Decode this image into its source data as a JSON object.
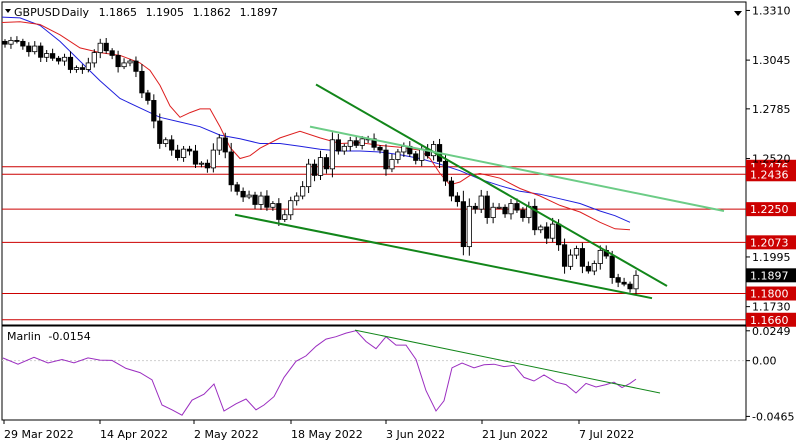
{
  "chart_data": {
    "type": "candlestick",
    "instrument": {
      "symbol": "GBPUSD",
      "timeframe": "Daily",
      "ohlc": [
        "1.1865",
        "1.1905",
        "1.1862",
        "1.1897"
      ]
    },
    "x_axis": {
      "tick_labels": [
        "29 Mar 2022",
        "14 Apr 2022",
        "2 May 2022",
        "18 May 2022",
        "3 Jun 2022",
        "21 Jun 2022",
        "7 Jul 2022"
      ]
    },
    "price_axis": {
      "ylim": [
        1.1632,
        1.3355
      ],
      "tick_labels": [
        1.331,
        1.3045,
        1.2785,
        1.252,
        1.1995,
        1.173
      ]
    },
    "current_price": {
      "label": "1.1897",
      "value": 1.1897
    },
    "levels": [
      {
        "value": 1.2476,
        "label": "1.2476",
        "color": "#cc0000"
      },
      {
        "value": 1.2436,
        "label": "1.2436",
        "color": "#cc0000"
      },
      {
        "value": 1.225,
        "label": "1.2250",
        "color": "#cc0000"
      },
      {
        "value": 1.2073,
        "label": "1.2073",
        "color": "#cc0000"
      },
      {
        "value": 1.18,
        "label": "1.1800",
        "color": "#cc0000"
      },
      {
        "value": 1.166,
        "label": "1.1660",
        "color": "#cc0000"
      }
    ],
    "candles": {
      "closes": [
        1.313,
        1.315,
        1.3145,
        1.312,
        1.309,
        1.312,
        1.306,
        1.308,
        1.3055,
        1.304,
        1.306,
        1.2995,
        1.3005,
        1.2995,
        1.303,
        1.3085,
        1.3135,
        1.3095,
        1.307,
        1.301,
        1.303,
        1.304,
        1.2985,
        1.287,
        1.283,
        1.272,
        1.26,
        1.262,
        1.2565,
        1.2525,
        1.257,
        1.256,
        1.249,
        1.2495,
        1.247,
        1.2565,
        1.263,
        1.2555,
        1.238,
        1.2345,
        1.2315,
        1.2325,
        1.2275,
        1.232,
        1.226,
        1.228,
        1.2195,
        1.222,
        1.2295,
        1.232,
        1.237,
        1.249,
        1.243,
        1.2525,
        1.2465,
        1.262,
        1.256,
        1.2585,
        1.2615,
        1.259,
        1.2625,
        1.2625,
        1.258,
        1.2565,
        1.2465,
        1.2515,
        1.2555,
        1.2585,
        1.2545,
        1.251,
        1.257,
        1.2535,
        1.2595,
        1.2505,
        1.24,
        1.232,
        1.229,
        1.205,
        1.2265,
        1.225,
        1.232,
        1.2205,
        1.226,
        1.226,
        1.2225,
        1.228,
        1.2245,
        1.2205,
        1.2265,
        1.214,
        1.2155,
        1.2095,
        1.217,
        1.206,
        1.1945,
        1.2005,
        1.204,
        1.1945,
        1.192,
        1.196,
        1.203,
        1.2,
        1.1885,
        1.186,
        1.185,
        1.1825,
        1.1897
      ],
      "bull_color": "#ffffff",
      "bear_color": "#000000",
      "wick_color": "#000000"
    },
    "moving_averages": [
      {
        "period": "slow",
        "color": "#1f1fdd",
        "points": [
          [
            0,
            1.3275
          ],
          [
            20,
            1.327
          ],
          [
            40,
            1.323
          ],
          [
            60,
            1.3145
          ],
          [
            80,
            1.304
          ],
          [
            100,
            1.2935
          ],
          [
            120,
            1.284
          ],
          [
            140,
            1.279
          ],
          [
            160,
            1.274
          ],
          [
            180,
            1.2715
          ],
          [
            200,
            1.269
          ],
          [
            220,
            1.2645
          ],
          [
            240,
            1.2625
          ],
          [
            260,
            1.26
          ],
          [
            280,
            1.26
          ],
          [
            300,
            1.2585
          ],
          [
            320,
            1.257
          ],
          [
            340,
            1.256
          ],
          [
            360,
            1.256
          ],
          [
            380,
            1.2555
          ],
          [
            400,
            1.254
          ],
          [
            420,
            1.252
          ],
          [
            440,
            1.249
          ],
          [
            460,
            1.2455
          ],
          [
            480,
            1.241
          ],
          [
            500,
            1.2375
          ],
          [
            520,
            1.2345
          ],
          [
            540,
            1.233
          ],
          [
            560,
            1.2305
          ],
          [
            580,
            1.228
          ],
          [
            600,
            1.224
          ],
          [
            615,
            1.2215
          ],
          [
            630,
            1.218
          ]
        ]
      },
      {
        "period": "fast",
        "color": "#dd1f1f",
        "points": [
          [
            0,
            1.3245
          ],
          [
            20,
            1.325
          ],
          [
            40,
            1.3235
          ],
          [
            60,
            1.318
          ],
          [
            80,
            1.311
          ],
          [
            100,
            1.3085
          ],
          [
            120,
            1.307
          ],
          [
            140,
            1.303
          ],
          [
            150,
            1.299
          ],
          [
            160,
            1.291
          ],
          [
            170,
            1.28
          ],
          [
            180,
            1.274
          ],
          [
            190,
            1.2765
          ],
          [
            200,
            1.2785
          ],
          [
            210,
            1.2785
          ],
          [
            220,
            1.269
          ],
          [
            230,
            1.258
          ],
          [
            240,
            1.252
          ],
          [
            250,
            1.2535
          ],
          [
            260,
            1.2575
          ],
          [
            280,
            1.263
          ],
          [
            300,
            1.2665
          ],
          [
            320,
            1.263
          ],
          [
            340,
            1.26
          ],
          [
            360,
            1.2605
          ],
          [
            380,
            1.259
          ],
          [
            400,
            1.258
          ],
          [
            420,
            1.2565
          ],
          [
            430,
            1.252
          ],
          [
            440,
            1.244
          ],
          [
            450,
            1.238
          ],
          [
            460,
            1.2395
          ],
          [
            470,
            1.243
          ],
          [
            480,
            1.244
          ],
          [
            500,
            1.2415
          ],
          [
            520,
            1.236
          ],
          [
            540,
            1.232
          ],
          [
            560,
            1.227
          ],
          [
            580,
            1.2235
          ],
          [
            600,
            1.218
          ],
          [
            615,
            1.2145
          ],
          [
            630,
            1.214
          ]
        ]
      }
    ],
    "trendlines": [
      {
        "color": "#12861a",
        "start": [
          316,
          1.2915
        ],
        "end": [
          667,
          1.184
        ]
      },
      {
        "color": "#12861a",
        "start": [
          235,
          1.222
        ],
        "end": [
          652,
          1.1775
        ]
      },
      {
        "color": "#6ccc86",
        "start": [
          310,
          1.269
        ],
        "end": [
          724,
          1.224
        ]
      }
    ],
    "oscillator": {
      "name": "Marlin",
      "value_label": "-0.0154",
      "ylim": [
        -0.0495,
        0.0289
      ],
      "tick_labels": [
        0.0249,
        0.0,
        -0.0465
      ],
      "color": "#9b2ec0",
      "points": [
        [
          3,
          0.0022
        ],
        [
          18,
          -0.003
        ],
        [
          34,
          0.0028
        ],
        [
          48,
          -0.002
        ],
        [
          62,
          0.001
        ],
        [
          74,
          -0.0018
        ],
        [
          88,
          0.0023
        ],
        [
          100,
          0.0005
        ],
        [
          112,
          0.0002
        ],
        [
          126,
          -0.0065
        ],
        [
          140,
          -0.01
        ],
        [
          152,
          -0.016
        ],
        [
          162,
          -0.037
        ],
        [
          172,
          -0.041
        ],
        [
          182,
          -0.0455
        ],
        [
          192,
          -0.033
        ],
        [
          204,
          -0.028
        ],
        [
          214,
          -0.0195
        ],
        [
          224,
          -0.042
        ],
        [
          236,
          -0.036
        ],
        [
          246,
          -0.032
        ],
        [
          256,
          -0.041
        ],
        [
          264,
          -0.037
        ],
        [
          274,
          -0.03
        ],
        [
          284,
          -0.014
        ],
        [
          296,
          -0.0005
        ],
        [
          306,
          0.004
        ],
        [
          316,
          0.012
        ],
        [
          326,
          0.018
        ],
        [
          336,
          0.02
        ],
        [
          346,
          0.023
        ],
        [
          356,
          0.025
        ],
        [
          366,
          0.016
        ],
        [
          376,
          0.01
        ],
        [
          386,
          0.02
        ],
        [
          396,
          0.013
        ],
        [
          406,
          0.013
        ],
        [
          416,
          0.001
        ],
        [
          426,
          -0.025
        ],
        [
          436,
          -0.042
        ],
        [
          444,
          -0.0335
        ],
        [
          452,
          -0.006
        ],
        [
          462,
          -0.002
        ],
        [
          474,
          -0.006
        ],
        [
          484,
          -0.0035
        ],
        [
          494,
          -0.003
        ],
        [
          504,
          -0.005
        ],
        [
          514,
          -0.004
        ],
        [
          524,
          -0.014
        ],
        [
          534,
          -0.017
        ],
        [
          544,
          -0.012
        ],
        [
          556,
          -0.018
        ],
        [
          566,
          -0.02
        ],
        [
          576,
          -0.027
        ],
        [
          586,
          -0.019
        ],
        [
          596,
          -0.022
        ],
        [
          606,
          -0.02
        ],
        [
          614,
          -0.018
        ],
        [
          622,
          -0.0225
        ],
        [
          630,
          -0.019
        ],
        [
          636,
          -0.0154
        ]
      ],
      "trendline": {
        "color": "#12861a",
        "start": [
          355,
          0.0255
        ],
        "end": [
          660,
          -0.027
        ]
      }
    }
  }
}
